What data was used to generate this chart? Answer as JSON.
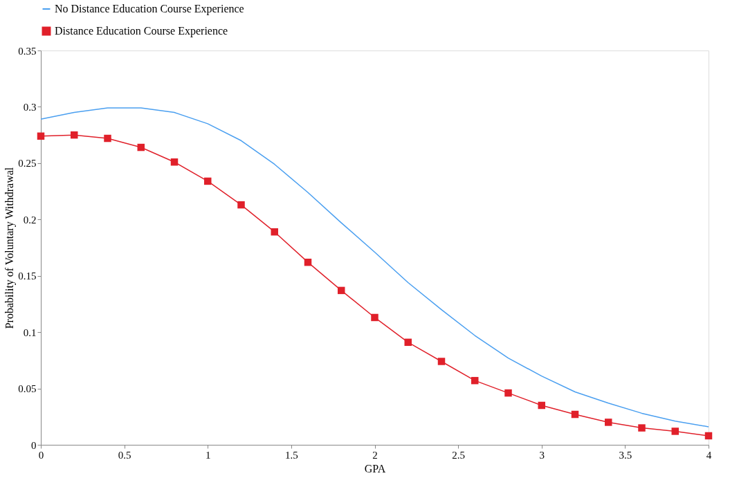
{
  "chart_data": {
    "type": "line",
    "xlabel": "GPA",
    "ylabel": "Probability of Voluntary Withdrawal",
    "x": [
      0,
      0.2,
      0.4,
      0.6,
      0.8,
      1,
      1.2,
      1.4,
      1.6,
      1.8,
      2,
      2.2,
      2.4,
      2.6,
      2.8,
      3,
      3.2,
      3.4,
      3.6,
      3.8,
      4
    ],
    "series": [
      {
        "name": "No Distance Education Course Experience",
        "color": "#4a9ff0",
        "marker": "none",
        "values": [
          0.289,
          0.295,
          0.299,
          0.299,
          0.295,
          0.285,
          0.27,
          0.249,
          0.224,
          0.197,
          0.171,
          0.144,
          0.12,
          0.097,
          0.077,
          0.061,
          0.047,
          0.037,
          0.028,
          0.021,
          0.016
        ]
      },
      {
        "name": "Distance Education Course Experience",
        "color": "#e0202a",
        "marker": "square",
        "values": [
          0.274,
          0.275,
          0.272,
          0.264,
          0.251,
          0.234,
          0.213,
          0.189,
          0.162,
          0.137,
          0.113,
          0.091,
          0.074,
          0.057,
          0.046,
          0.035,
          0.027,
          0.02,
          0.015,
          0.012,
          0.008
        ]
      }
    ],
    "xlim": [
      0,
      4
    ],
    "xticks": [
      0,
      0.5,
      1,
      1.5,
      2,
      2.5,
      3,
      3.5,
      4
    ],
    "ylim": [
      0,
      0.35
    ],
    "yticks": [
      0,
      0.05,
      0.1,
      0.15,
      0.2,
      0.25,
      0.3,
      0.35
    ],
    "grid": false,
    "legend": "top",
    "line_style": "solid"
  }
}
